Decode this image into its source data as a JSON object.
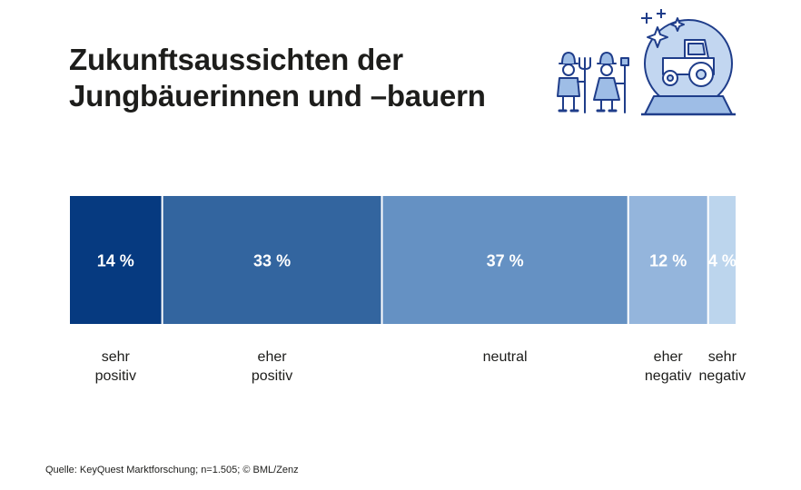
{
  "title": {
    "line1": "Zukunftsaussichten der",
    "line2": "Jungbäuerinnen und –bauern"
  },
  "footer": {
    "source": "Quelle: KeyQuest Marktforschung; n=1.505;  © BML/Zenz"
  },
  "illustration": {
    "icons": [
      "farmer-man-with-pitchfork-icon",
      "farmer-woman-with-shovel-icon",
      "crystal-ball-tractor-icon",
      "sparkles-icon"
    ]
  },
  "chart_data": {
    "type": "bar",
    "orientation": "horizontal-stacked-100",
    "title": "Zukunftsaussichten der Jungbäuerinnen und –bauern",
    "categories": [
      {
        "label_lines": [
          "sehr",
          "positiv"
        ],
        "value": 14,
        "value_label": "14 %",
        "color": "#063a80"
      },
      {
        "label_lines": [
          "eher",
          "positiv"
        ],
        "value": 33,
        "value_label": "33 %",
        "color": "#33659f"
      },
      {
        "label_lines": [
          "neutral"
        ],
        "value": 37,
        "value_label": "37 %",
        "color": "#6591c3"
      },
      {
        "label_lines": [
          "eher",
          "negativ"
        ],
        "value": 12,
        "value_label": "12 %",
        "color": "#94b5dc"
      },
      {
        "label_lines": [
          "sehr",
          "negativ"
        ],
        "value": 4,
        "value_label": "4 %",
        "color": "#bcd5ed"
      }
    ],
    "unit": "%",
    "total": 100
  }
}
